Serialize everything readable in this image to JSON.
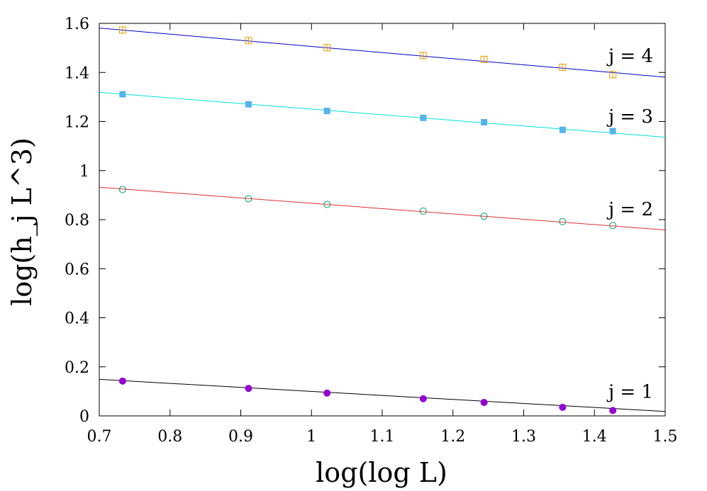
{
  "chart_data": {
    "type": "scatter",
    "xlabel": "log(log L)",
    "ylabel": "log(h_j L^3)",
    "xlim": [
      0.7,
      1.5
    ],
    "ylim": [
      0,
      1.6
    ],
    "xticks": [
      "0.7",
      "0.8",
      "0.9",
      "1",
      "1.1",
      "1.2",
      "1.3",
      "1.4",
      "1.5"
    ],
    "yticks": [
      "0",
      "0.2",
      "0.4",
      "0.6",
      "0.8",
      "1",
      "1.2",
      "1.4",
      "1.6"
    ],
    "grid": false,
    "x": [
      0.733,
      0.911,
      1.022,
      1.158,
      1.244,
      1.355,
      1.426
    ],
    "series": [
      {
        "label": "j = 1",
        "marker": "filled-circle",
        "marker_color": "#9400d3",
        "line_color": "#000000",
        "values": [
          0.142,
          0.112,
          0.093,
          0.07,
          0.055,
          0.035,
          0.022
        ],
        "fit": {
          "x": [
            0.7,
            1.5
          ],
          "y": [
            0.149,
            0.018
          ]
        }
      },
      {
        "label": "j = 2",
        "marker": "open-circle",
        "marker_color": "#009e73",
        "line_color": "#e03030",
        "values": [
          0.923,
          0.885,
          0.862,
          0.835,
          0.814,
          0.792,
          0.776
        ],
        "fit": {
          "x": [
            0.7,
            1.5
          ],
          "y": [
            0.932,
            0.758
          ]
        }
      },
      {
        "label": "j = 3",
        "marker": "filled-square",
        "marker_color": "#56b4e9",
        "line_color": "#00e0e0",
        "values": [
          1.311,
          1.27,
          1.243,
          1.215,
          1.197,
          1.166,
          1.161
        ],
        "fit": {
          "x": [
            0.7,
            1.5
          ],
          "y": [
            1.319,
            1.136
          ]
        }
      },
      {
        "label": "j = 4",
        "marker": "open-square-errorbar",
        "marker_color": "#e69f00",
        "line_color": "#0000cd",
        "values": [
          1.573,
          1.53,
          1.501,
          1.469,
          1.453,
          1.421,
          1.391
        ],
        "fit": {
          "x": [
            0.7,
            1.5
          ],
          "y": [
            1.581,
            1.381
          ]
        }
      }
    ]
  }
}
